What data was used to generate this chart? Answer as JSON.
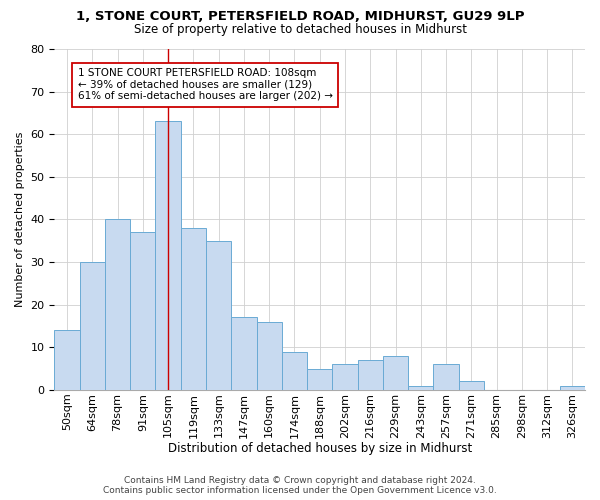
{
  "title": "1, STONE COURT, PETERSFIELD ROAD, MIDHURST, GU29 9LP",
  "subtitle": "Size of property relative to detached houses in Midhurst",
  "xlabel": "Distribution of detached houses by size in Midhurst",
  "ylabel": "Number of detached properties",
  "bar_color": "#c8daf0",
  "bar_edge_color": "#6aaad4",
  "categories": [
    "50sqm",
    "64sqm",
    "78sqm",
    "91sqm",
    "105sqm",
    "119sqm",
    "133sqm",
    "147sqm",
    "160sqm",
    "174sqm",
    "188sqm",
    "202sqm",
    "216sqm",
    "229sqm",
    "243sqm",
    "257sqm",
    "271sqm",
    "285sqm",
    "298sqm",
    "312sqm",
    "326sqm"
  ],
  "values": [
    14,
    30,
    40,
    37,
    63,
    38,
    35,
    17,
    16,
    9,
    5,
    6,
    7,
    8,
    1,
    6,
    2,
    0,
    0,
    0,
    1
  ],
  "ylim": [
    0,
    80
  ],
  "yticks": [
    0,
    10,
    20,
    30,
    40,
    50,
    60,
    70,
    80
  ],
  "vline_x": 4,
  "vline_color": "#cc0000",
  "annotation_text": "1 STONE COURT PETERSFIELD ROAD: 108sqm\n← 39% of detached houses are smaller (129)\n61% of semi-detached houses are larger (202) →",
  "footer_line1": "Contains HM Land Registry data © Crown copyright and database right 2024.",
  "footer_line2": "Contains public sector information licensed under the Open Government Licence v3.0.",
  "background_color": "#ffffff",
  "grid_color": "#d0d0d0",
  "title_fontsize": 9.5,
  "subtitle_fontsize": 8.5,
  "ylabel_fontsize": 8,
  "xlabel_fontsize": 8.5,
  "tick_fontsize": 8,
  "annot_fontsize": 7.5,
  "footer_fontsize": 6.5
}
